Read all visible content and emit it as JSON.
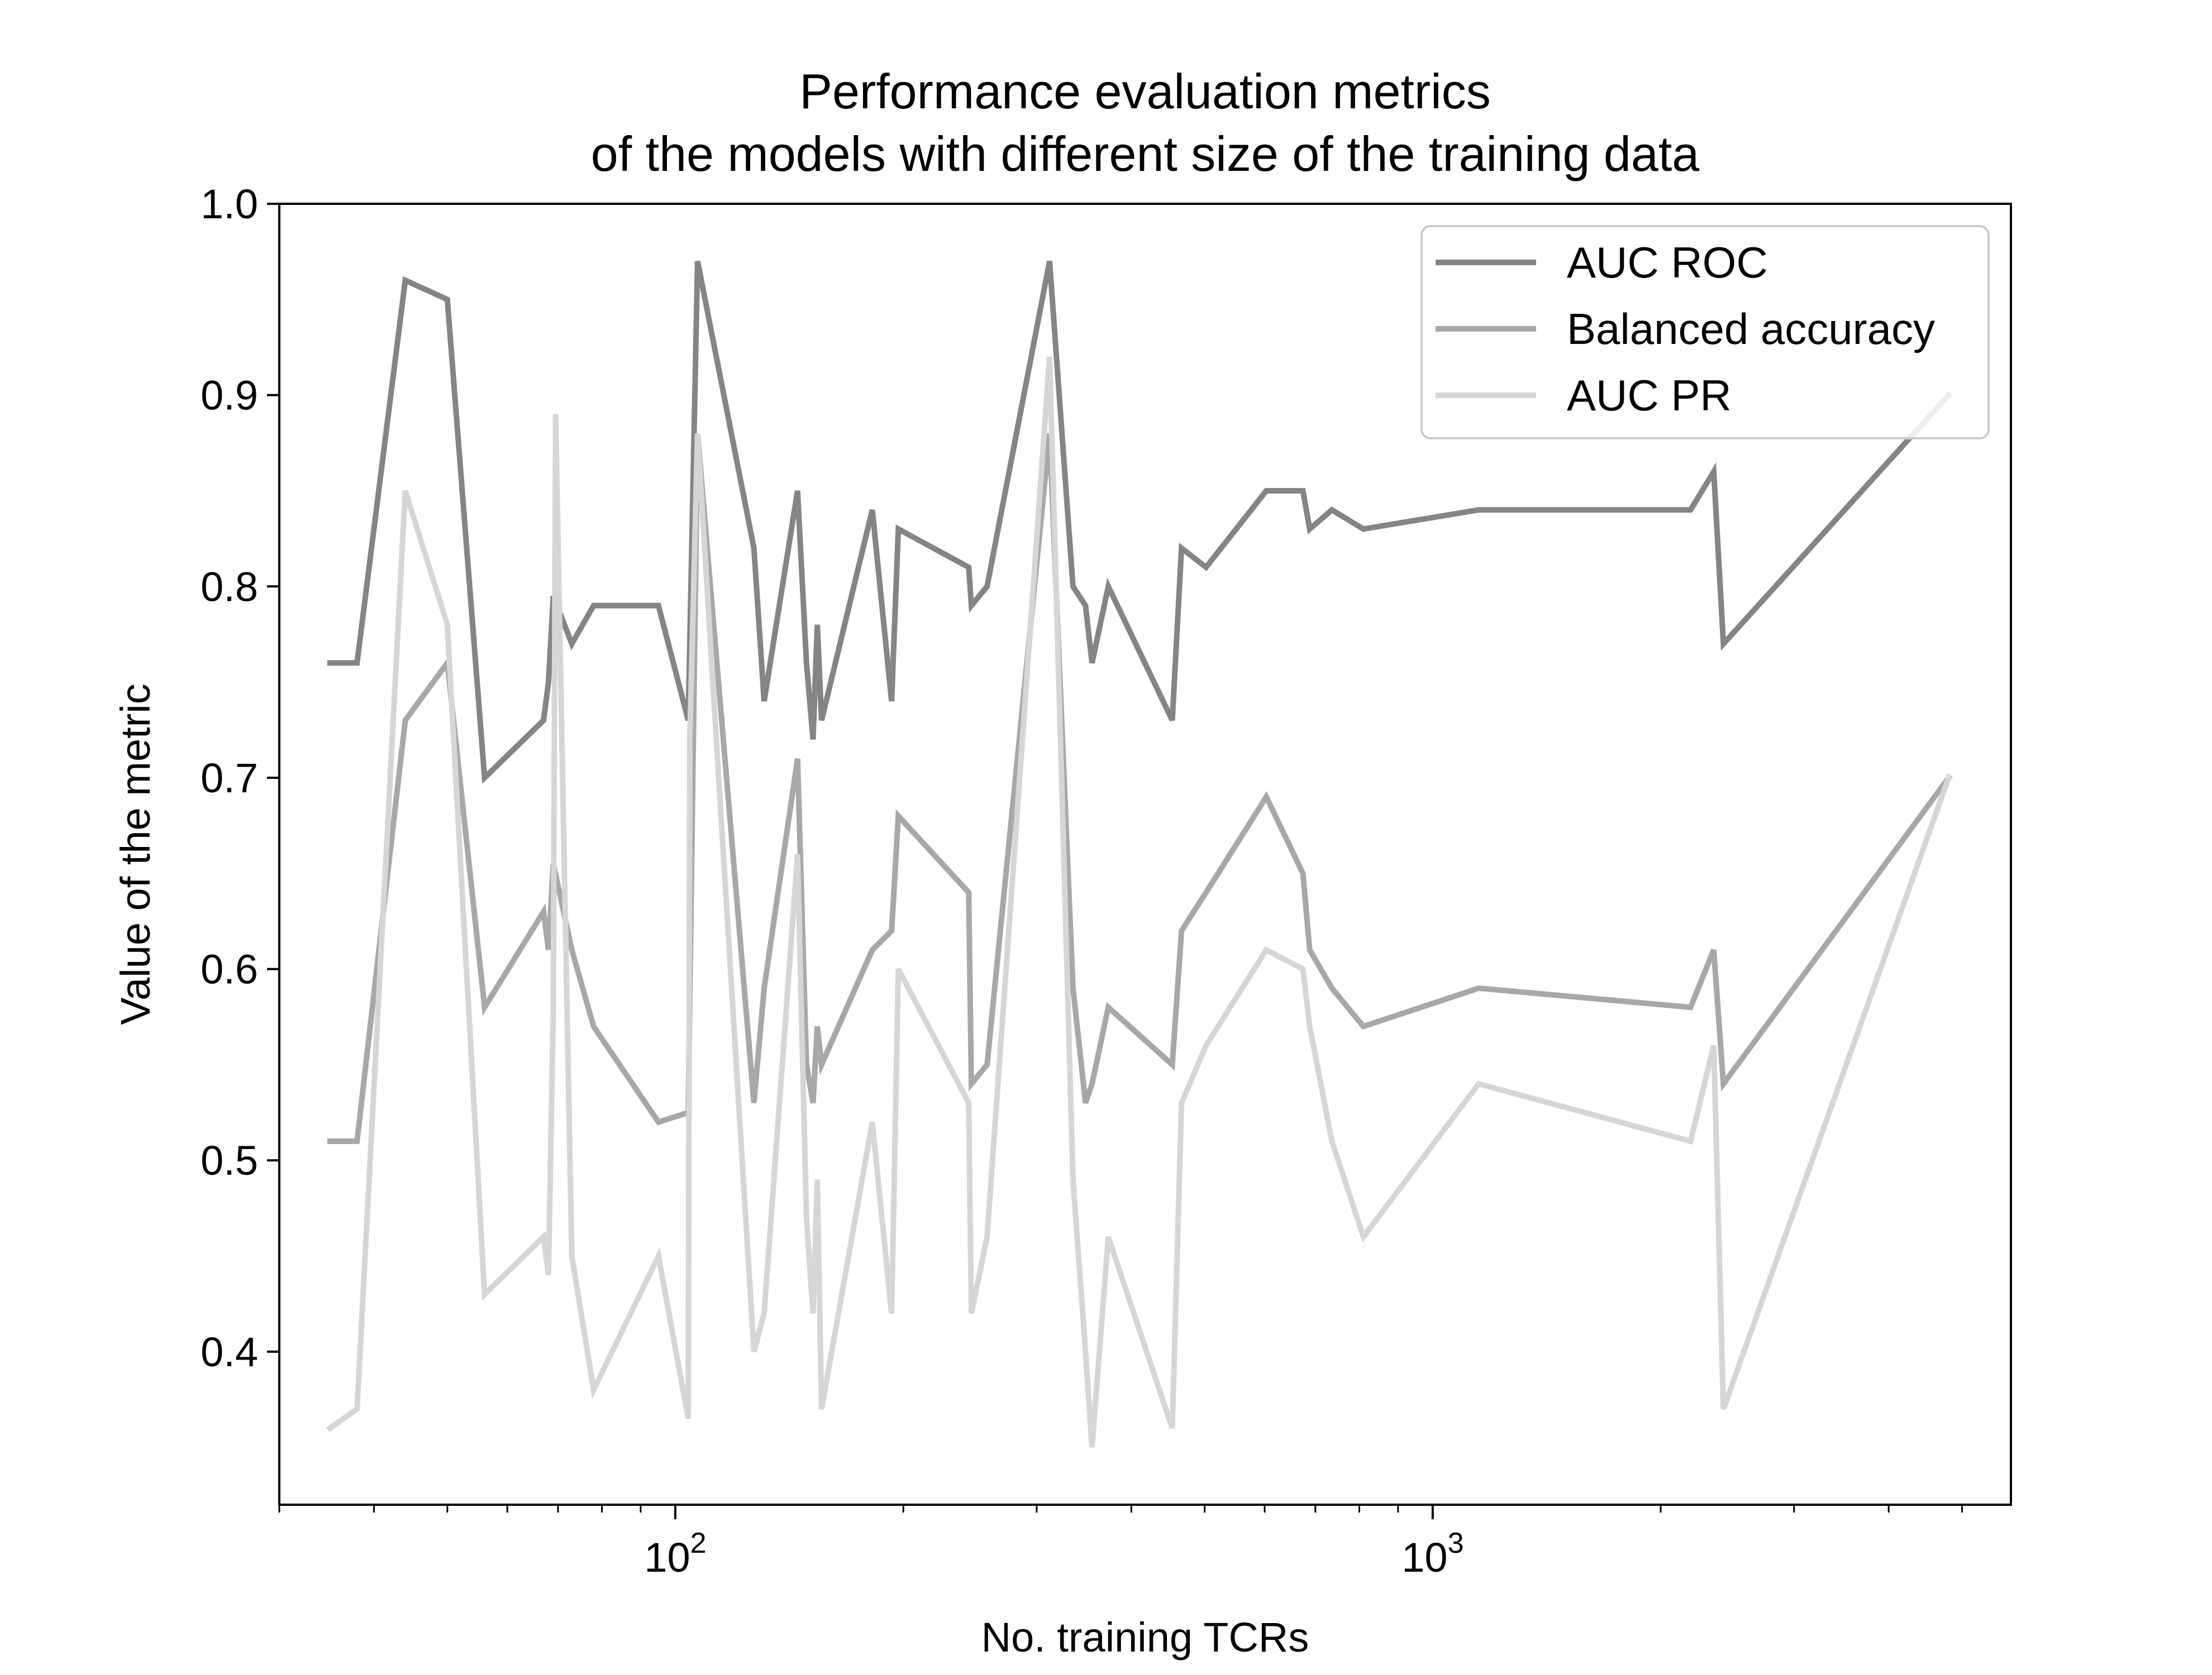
{
  "chart_data": {
    "type": "line",
    "title": "Performance evaluation metrics\nof the models with different size of the training data",
    "title_lines": [
      "Performance evaluation metrics",
      "of the models with different size of the training data"
    ],
    "xlabel": "No. training TCRs",
    "ylabel": "Value of the metric",
    "xscale": "log",
    "xlim": [
      30,
      5800
    ],
    "ylim": [
      0.32,
      1.0
    ],
    "xticks": [
      {
        "base": "10",
        "exp": "2",
        "value": 100
      },
      {
        "base": "10",
        "exp": "3",
        "value": 1000
      }
    ],
    "yticks": [
      "0.4",
      "0.5",
      "0.6",
      "0.7",
      "0.8",
      "0.9",
      "1.0"
    ],
    "grid": false,
    "legend_position": "upper right",
    "series": [
      {
        "name": "AUC ROC",
        "color": "#858585",
        "x": [
          35,
          38,
          44,
          50,
          56,
          67,
          68,
          69,
          73,
          78,
          95,
          104,
          107,
          127,
          131,
          145,
          149,
          152,
          154,
          156,
          182,
          193,
          197,
          244,
          246,
          258,
          312,
          335,
          348,
          355,
          373,
          453,
          466,
          502,
          603,
          674,
          688,
          736,
          810,
          1150,
          2190,
          2350,
          2420,
          4800
        ],
        "values": [
          0.76,
          0.76,
          0.96,
          0.95,
          0.7,
          0.73,
          0.75,
          0.795,
          0.77,
          0.79,
          0.79,
          0.73,
          0.97,
          0.82,
          0.74,
          0.85,
          0.76,
          0.72,
          0.78,
          0.73,
          0.84,
          0.74,
          0.83,
          0.81,
          0.79,
          0.8,
          0.97,
          0.8,
          0.79,
          0.76,
          0.8,
          0.73,
          0.82,
          0.81,
          0.85,
          0.85,
          0.83,
          0.84,
          0.83,
          0.84,
          0.84,
          0.86,
          0.77,
          0.9
        ]
      },
      {
        "name": "Balanced accuracy",
        "color": "#a8a8a8",
        "x": [
          35,
          38,
          44,
          50,
          56,
          67,
          68,
          69,
          73,
          78,
          95,
          104,
          107,
          127,
          131,
          145,
          149,
          152,
          154,
          156,
          182,
          193,
          197,
          244,
          246,
          258,
          312,
          335,
          348,
          355,
          373,
          453,
          466,
          502,
          603,
          674,
          688,
          736,
          810,
          1150,
          2190,
          2350,
          2420,
          4800
        ],
        "values": [
          0.51,
          0.51,
          0.73,
          0.76,
          0.58,
          0.63,
          0.61,
          0.655,
          0.61,
          0.57,
          0.52,
          0.525,
          0.88,
          0.53,
          0.59,
          0.71,
          0.55,
          0.53,
          0.57,
          0.55,
          0.61,
          0.62,
          0.68,
          0.64,
          0.54,
          0.55,
          0.88,
          0.59,
          0.53,
          0.54,
          0.58,
          0.55,
          0.62,
          0.64,
          0.69,
          0.65,
          0.61,
          0.59,
          0.57,
          0.59,
          0.58,
          0.61,
          0.54,
          0.7
        ]
      },
      {
        "name": "AUC PR",
        "color": "#d6d6d6",
        "x": [
          35,
          38,
          44,
          50,
          56,
          67,
          68,
          69,
          69.5,
          73,
          78,
          95,
          104,
          104.5,
          107,
          127,
          131,
          145,
          149,
          152,
          154,
          156,
          182,
          193,
          197,
          244,
          246,
          258,
          312,
          335,
          348,
          355,
          373,
          453,
          466,
          502,
          603,
          674,
          688,
          736,
          810,
          1150,
          2190,
          2350,
          2420,
          4800
        ],
        "values": [
          0.36,
          0.37,
          0.85,
          0.78,
          0.43,
          0.46,
          0.44,
          0.58,
          0.89,
          0.45,
          0.38,
          0.45,
          0.365,
          0.72,
          0.88,
          0.4,
          0.42,
          0.66,
          0.47,
          0.42,
          0.49,
          0.37,
          0.52,
          0.42,
          0.6,
          0.53,
          0.42,
          0.46,
          0.92,
          0.49,
          0.4,
          0.35,
          0.46,
          0.36,
          0.53,
          0.56,
          0.61,
          0.6,
          0.57,
          0.51,
          0.46,
          0.54,
          0.51,
          0.56,
          0.37,
          0.7
        ]
      }
    ]
  }
}
